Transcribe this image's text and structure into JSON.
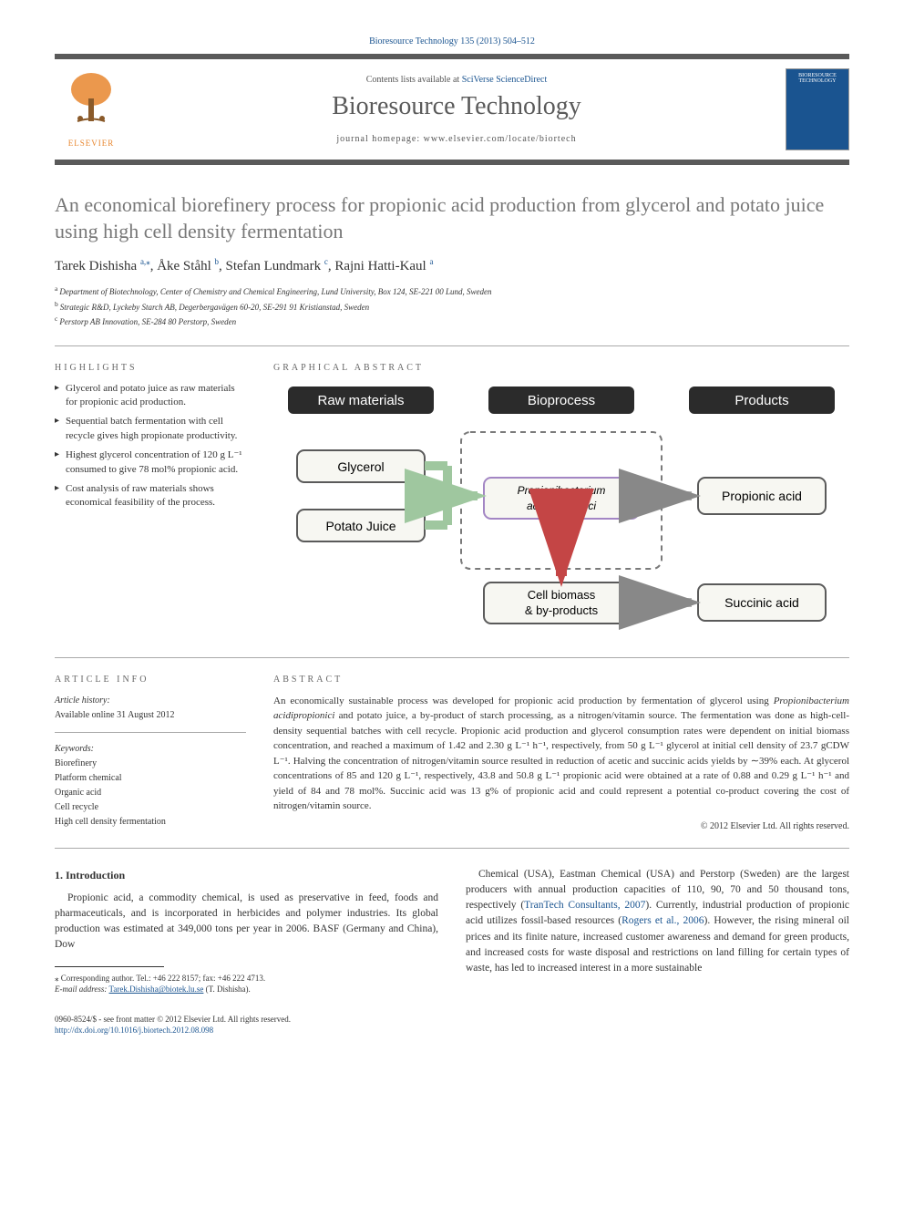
{
  "citation": "Bioresource Technology 135 (2013) 504–512",
  "header": {
    "contents_prefix": "Contents lists available at ",
    "contents_link": "SciVerse ScienceDirect",
    "journal_name": "Bioresource Technology",
    "homepage_prefix": "journal homepage: ",
    "homepage_url": "www.elsevier.com/locate/biortech",
    "publisher": "ELSEVIER",
    "cover_label": "BIORESOURCE TECHNOLOGY"
  },
  "title": "An economical biorefinery process for propionic acid production from glycerol and potato juice using high cell density fermentation",
  "authors_html": "Tarek Dishisha <sup class='sup-link'>a,</sup><sup class='sup-link'>⁎</sup>, Åke Ståhl <sup class='sup-link'>b</sup>, Stefan Lundmark <sup class='sup-link'>c</sup>, Rajni Hatti-Kaul <sup class='sup-link'>a</sup>",
  "affiliations": [
    {
      "sup": "a",
      "text": "Department of Biotechnology, Center of Chemistry and Chemical Engineering, Lund University, Box 124, SE-221 00 Lund, Sweden"
    },
    {
      "sup": "b",
      "text": "Strategic R&D, Lyckeby Starch AB, Degerbergavägen 60-20, SE-291 91 Kristianstad, Sweden"
    },
    {
      "sup": "c",
      "text": "Perstorp AB Innovation, SE-284 80 Perstorp, Sweden"
    }
  ],
  "sections": {
    "highlights_label": "HIGHLIGHTS",
    "graphical_label": "GRAPHICAL ABSTRACT",
    "article_info_label": "ARTICLE INFO",
    "abstract_label": "ABSTRACT"
  },
  "highlights": [
    "Glycerol and potato juice as raw materials for propionic acid production.",
    "Sequential batch fermentation with cell recycle gives high propionate productivity.",
    "Highest glycerol concentration of 120 g L⁻¹ consumed to give 78 mol% propionic acid.",
    "Cost analysis of raw materials shows economical feasibility of the process."
  ],
  "graphical_abstract": {
    "headers": {
      "raw": "Raw materials",
      "bio": "Bioprocess",
      "prod": "Products"
    },
    "nodes": {
      "glycerol": "Glycerol",
      "potato": "Potato Juice",
      "organism": "Propionibacterium acidipropionici",
      "biomass": "Cell biomass & by-products",
      "propionic": "Propionic acid",
      "succinic": "Succinic acid"
    },
    "colors": {
      "header_bg": "#2b2b2b",
      "header_text": "#ffffff",
      "node_bg": "#f7f7f2",
      "node_border": "#5a5a5a",
      "bioprocess_border": "#a386c4",
      "arrow_green": "#9fc79f",
      "arrow_red": "#c44545",
      "arrow_gray": "#b0b0b0",
      "dashed_border": "#7a7a7a"
    }
  },
  "article_info": {
    "history_label": "Article history:",
    "history": "Available online 31 August 2012",
    "keywords_label": "Keywords:",
    "keywords": [
      "Biorefinery",
      "Platform chemical",
      "Organic acid",
      "Cell recycle",
      "High cell density fermentation"
    ]
  },
  "abstract": "An economically sustainable process was developed for propionic acid production by fermentation of glycerol using Propionibacterium acidipropionici and potato juice, a by-product of starch processing, as a nitrogen/vitamin source. The fermentation was done as high-cell-density sequential batches with cell recycle. Propionic acid production and glycerol consumption rates were dependent on initial biomass concentration, and reached a maximum of 1.42 and 2.30 g L⁻¹ h⁻¹, respectively, from 50 g L⁻¹ glycerol at initial cell density of 23.7 gCDW L⁻¹. Halving the concentration of nitrogen/vitamin source resulted in reduction of acetic and succinic acids yields by ∼39% each. At glycerol concentrations of 85 and 120 g L⁻¹, respectively, 43.8 and 50.8 g L⁻¹ propionic acid were obtained at a rate of 0.88 and 0.29 g L⁻¹ h⁻¹ and yield of 84 and 78 mol%. Succinic acid was 13 g% of propionic acid and could represent a potential co-product covering the cost of nitrogen/vitamin source.",
  "copyright": "© 2012 Elsevier Ltd. All rights reserved.",
  "body": {
    "section_number": "1.",
    "section_title": "Introduction",
    "para1": "Propionic acid, a commodity chemical, is used as preservative in feed, foods and pharmaceuticals, and is incorporated in herbicides and polymer industries. Its global production was estimated at 349,000 tons per year in 2006. BASF (Germany and China), Dow",
    "para2_pre": "Chemical (USA), Eastman Chemical (USA) and Perstorp (Sweden) are the largest producers with annual production capacities of 110, 90, 70 and 50 thousand tons, respectively (",
    "para2_link1": "TranTech Consultants, 2007",
    "para2_mid": "). Currently, industrial production of propionic acid utilizes fossil-based resources (",
    "para2_link2": "Rogers et al., 2006",
    "para2_post": "). However, the rising mineral oil prices and its finite nature, increased customer awareness and demand for green products, and increased costs for waste disposal and restrictions on land filling for certain types of waste, has led to increased interest in a more sustainable"
  },
  "footnotes": {
    "corr": "⁎ Corresponding author. Tel.: +46 222 8157; fax: +46 222 4713.",
    "email_label": "E-mail address:",
    "email": "Tarek.Dishisha@biotek.lu.se",
    "email_suffix": "(T. Dishisha)."
  },
  "footer": {
    "line1": "0960-8524/$ - see front matter © 2012 Elsevier Ltd. All rights reserved.",
    "doi": "http://dx.doi.org/10.1016/j.biortech.2012.08.098"
  }
}
